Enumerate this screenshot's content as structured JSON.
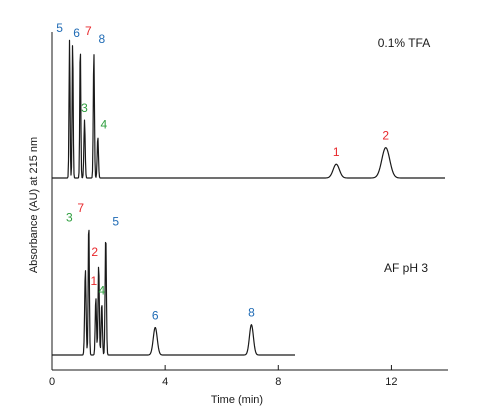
{
  "chart_data": {
    "type": "line",
    "xlabel": "Time (min)",
    "ylabel": "Absorbance (AU) at 215 nm",
    "xlim": [
      0,
      14
    ],
    "xticks": [
      0,
      4,
      8,
      12
    ],
    "colors": {
      "red": "#e8262a",
      "green": "#2e9e3e",
      "blue": "#1f6bb5",
      "trace": "#1a1a1a"
    },
    "panels": [
      {
        "condition": "0.1% TFA",
        "trace_end": 13.9,
        "peaks": [
          {
            "label": "5",
            "t": 0.62,
            "h": 1.0,
            "w": 0.018,
            "color": "blue"
          },
          {
            "label": "6",
            "t": 0.73,
            "h": 1.0,
            "w": 0.018,
            "color": "blue"
          },
          {
            "label": "7",
            "t": 1.0,
            "h": 0.98,
            "w": 0.018,
            "color": "red"
          },
          {
            "label": "3",
            "t": 1.15,
            "h": 0.42,
            "w": 0.022,
            "color": "green"
          },
          {
            "label": "8",
            "t": 1.48,
            "h": 0.92,
            "w": 0.02,
            "color": "blue"
          },
          {
            "label": "4",
            "t": 1.62,
            "h": 0.3,
            "w": 0.022,
            "color": "green"
          },
          {
            "label": "1",
            "t": 10.05,
            "h": 0.1,
            "w": 0.11,
            "color": "red"
          },
          {
            "label": "2",
            "t": 11.8,
            "h": 0.22,
            "w": 0.14,
            "color": "red"
          }
        ]
      },
      {
        "condition": "AF pH 3",
        "trace_end": 8.6,
        "peaks": [
          {
            "label": "3",
            "t": 1.18,
            "h": 0.62,
            "w": 0.025,
            "color": "green"
          },
          {
            "label": "7",
            "t": 1.3,
            "h": 0.98,
            "w": 0.02,
            "color": "red"
          },
          {
            "label": "1",
            "t": 1.55,
            "h": 0.42,
            "w": 0.022,
            "color": "red"
          },
          {
            "label": "2",
            "t": 1.65,
            "h": 0.66,
            "w": 0.022,
            "color": "red"
          },
          {
            "label": "4",
            "t": 1.76,
            "h": 0.38,
            "w": 0.022,
            "color": "green"
          },
          {
            "label": "5",
            "t": 1.9,
            "h": 0.88,
            "w": 0.022,
            "color": "blue"
          },
          {
            "label": "6",
            "t": 3.65,
            "h": 0.2,
            "w": 0.07,
            "color": "blue"
          },
          {
            "label": "8",
            "t": 7.05,
            "h": 0.22,
            "w": 0.07,
            "color": "blue"
          }
        ]
      }
    ]
  }
}
